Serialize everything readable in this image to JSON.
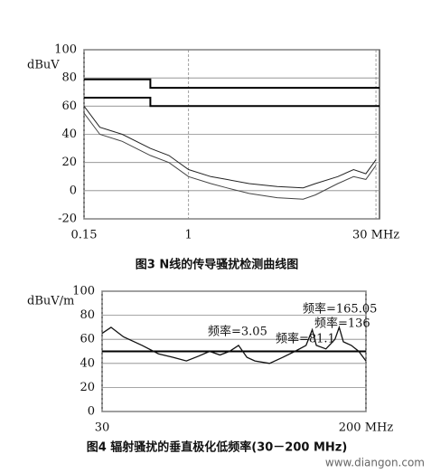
{
  "chart_data": [
    {
      "type": "line",
      "title": "图3 N线的传导骚扰检测曲线图",
      "y_label": "dBuV",
      "xscale": "log",
      "grid": true,
      "xlim": [
        0.15,
        32
      ],
      "xticks": [
        0.15,
        1,
        {
          "value": 30,
          "label": "30 MHz"
        }
      ],
      "ylim": [
        -20,
        100
      ],
      "yticks": [
        -20,
        0,
        20,
        40,
        60,
        80,
        100
      ],
      "series": [
        {
          "color": "#000000",
          "width": 2,
          "x": [
            0.15,
            0.5,
            0.5,
            32
          ],
          "values": [
            79,
            79,
            73,
            73
          ]
        },
        {
          "color": "#000000",
          "width": 2,
          "x": [
            0.15,
            0.5,
            0.5,
            32
          ],
          "values": [
            66,
            66,
            60,
            60
          ]
        },
        {
          "color": "#222222",
          "width": 1,
          "x": [
            0.15,
            0.2,
            0.3,
            0.5,
            0.7,
            1,
            1.5,
            2,
            3,
            5,
            8,
            10,
            15,
            20,
            25,
            30
          ],
          "values": [
            60,
            45,
            40,
            30,
            25,
            15,
            10,
            8,
            5,
            3,
            2,
            5,
            10,
            15,
            12,
            22
          ]
        },
        {
          "color": "#444444",
          "width": 1,
          "x": [
            0.15,
            0.2,
            0.3,
            0.5,
            0.7,
            1,
            1.5,
            2,
            3,
            5,
            8,
            10,
            15,
            20,
            25,
            30
          ],
          "values": [
            55,
            40,
            35,
            25,
            20,
            10,
            5,
            2,
            -2,
            -5,
            -6,
            -3,
            5,
            10,
            8,
            18
          ]
        }
      ]
    },
    {
      "type": "line",
      "title": "图4 辐射骚扰的垂直极化低频率(30－200 MHz)",
      "y_label": "dBuV/m",
      "xscale": "log",
      "grid": true,
      "xlim": [
        30,
        200
      ],
      "xticks": [
        30,
        {
          "value": 200,
          "label": "200 MHz"
        }
      ],
      "ylim": [
        0,
        100
      ],
      "yticks": [
        0,
        20,
        40,
        60,
        80,
        100
      ],
      "annotations": [
        "频率=3.05",
        "频率=81.1",
        "频率=165.05",
        "频率=136"
      ],
      "series": [
        {
          "color": "#000000",
          "width": 2,
          "x": [
            30,
            200
          ],
          "values": [
            50,
            50
          ]
        },
        {
          "color": "#111111",
          "width": 1.3,
          "x": [
            30,
            32,
            35,
            40,
            45,
            50,
            55,
            60,
            65,
            70,
            75,
            80,
            85,
            90,
            100,
            110,
            120,
            130,
            136,
            140,
            150,
            160,
            165,
            170,
            180,
            190,
            200
          ],
          "values": [
            65,
            70,
            62,
            55,
            48,
            45,
            42,
            46,
            50,
            47,
            50,
            55,
            45,
            42,
            40,
            45,
            50,
            55,
            68,
            55,
            52,
            60,
            70,
            58,
            55,
            50,
            42
          ]
        }
      ]
    }
  ],
  "watermark": "www.diangon.com"
}
